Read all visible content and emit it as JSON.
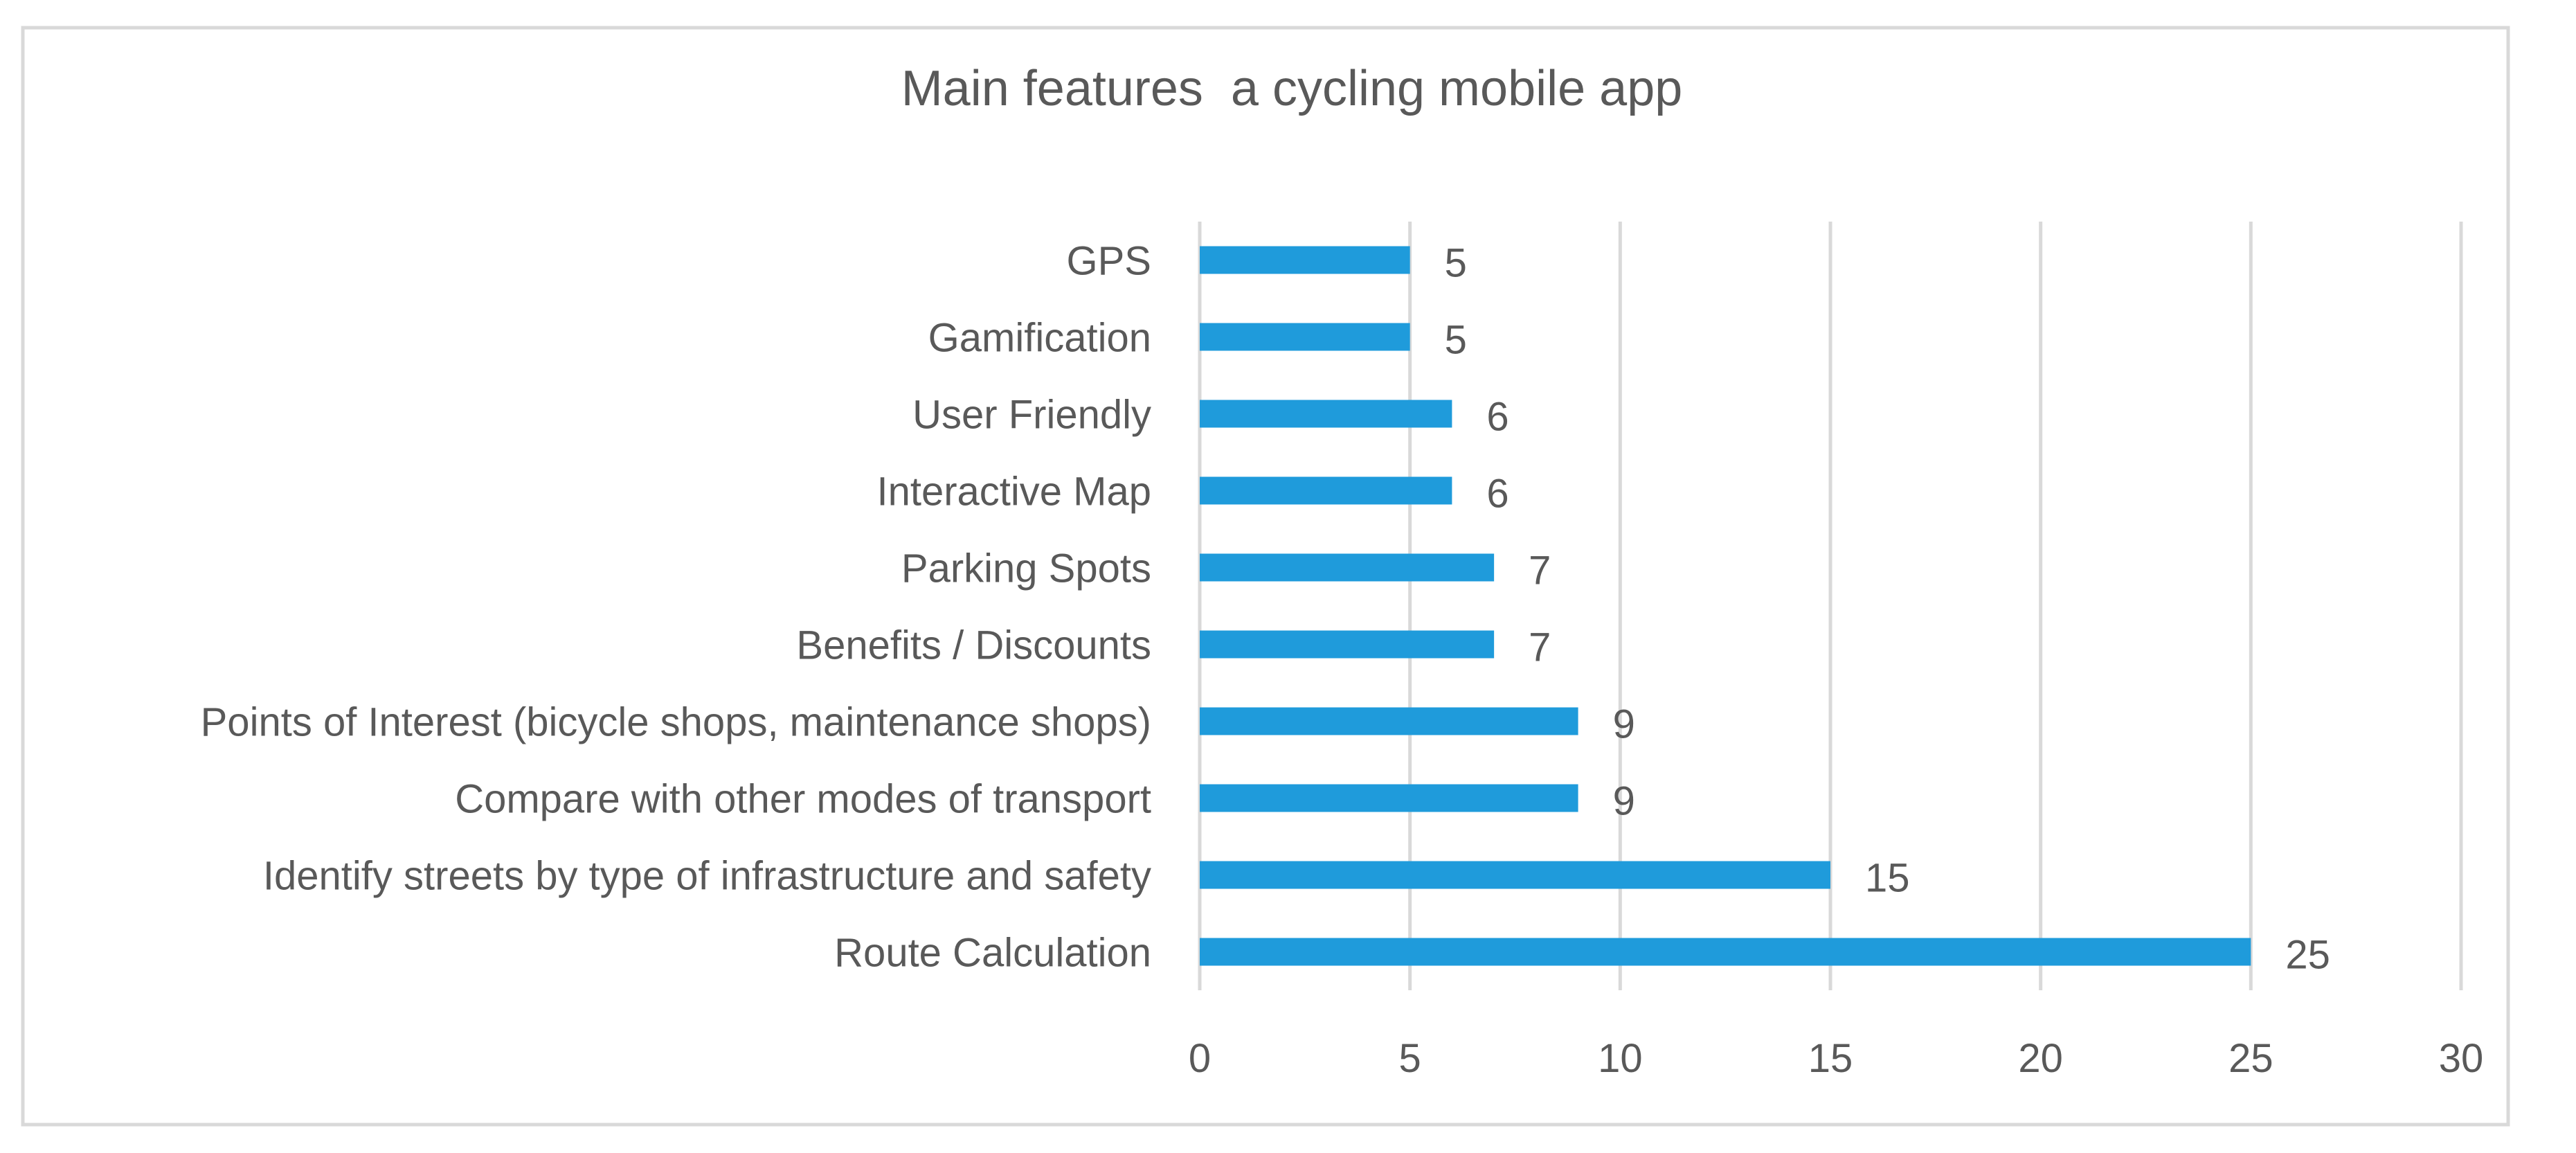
{
  "chart_data": {
    "type": "bar",
    "orientation": "horizontal",
    "title": "Main features  a cycling mobile app",
    "categories": [
      "GPS",
      "Gamification",
      "User Friendly",
      "Interactive Map",
      "Parking Spots",
      "Benefits / Discounts",
      "Points of Interest (bicycle shops, maintenance shops)",
      "Compare with other modes of transport",
      "Identify streets by type of infrastructure and safety",
      "Route Calculation"
    ],
    "values": [
      5,
      5,
      6,
      6,
      7,
      7,
      9,
      9,
      15,
      25
    ],
    "xlim": [
      0,
      30
    ],
    "x_ticks": [
      0,
      5,
      10,
      15,
      20,
      25,
      30
    ],
    "xlabel": "",
    "ylabel": "",
    "grid": "vertical gridlines",
    "legend": "none",
    "data_labels": true,
    "colors": {
      "bar": "#1F9BDB",
      "grid": "#D9D9D9",
      "text": "#595959",
      "border": "#D9D9D9"
    }
  }
}
